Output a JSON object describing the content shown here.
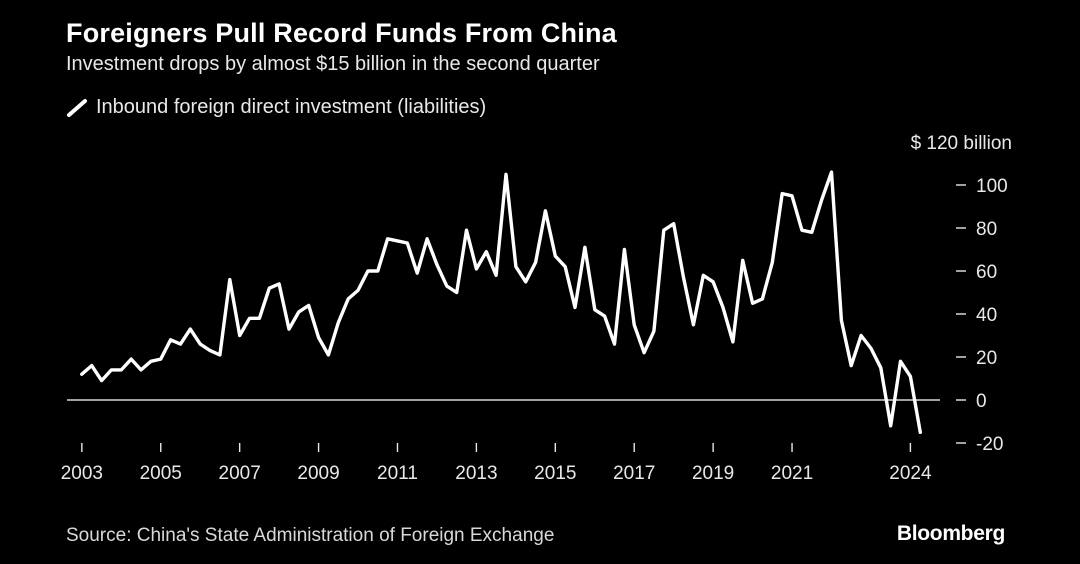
{
  "header": {
    "title": "Foreigners Pull Record Funds From China",
    "subtitle": "Investment drops by almost $15 billion in the second quarter"
  },
  "footer": {
    "source": "Source: China's State Administration of Foreign Exchange",
    "brand": "Bloomberg"
  },
  "colors": {
    "background": "#000000",
    "line": "#ffffff",
    "zero_line": "#ffffff",
    "text": "#e8e8e8"
  },
  "chart_data": {
    "type": "line",
    "title": "Foreigners Pull Record Funds From China",
    "subtitle": "Investment drops by almost $15 billion in the second quarter",
    "y_unit_label": "$ 120 billion",
    "ylim": [
      -20,
      120
    ],
    "yticks": [
      -20,
      0,
      20,
      40,
      60,
      80,
      100
    ],
    "ytick_labels": [
      "-20",
      "0",
      "20",
      "40",
      "60",
      "80",
      "100"
    ],
    "xticks": [
      2003,
      2005,
      2007,
      2009,
      2011,
      2013,
      2015,
      2017,
      2019,
      2021,
      2024
    ],
    "xtick_labels": [
      "2003",
      "2005",
      "2007",
      "2009",
      "2011",
      "2013",
      "2015",
      "2017",
      "2019",
      "2021",
      "2024"
    ],
    "xlim": [
      2002.7,
      2024.75
    ],
    "grid": false,
    "legend_position": "top-left",
    "series": [
      {
        "name": "Inbound foreign direct investment (liabilities)",
        "x_start": 2003.0,
        "x_step": 0.25,
        "values": [
          12,
          16,
          9,
          14,
          14,
          19,
          14,
          18,
          19,
          28,
          26,
          33,
          26,
          23,
          21,
          56,
          30,
          38,
          38,
          52,
          54,
          33,
          41,
          44,
          29,
          21,
          36,
          47,
          51,
          60,
          60,
          75,
          74,
          73,
          59,
          75,
          63,
          53,
          50,
          79,
          61,
          69,
          58,
          105,
          62,
          55,
          64,
          88,
          67,
          62,
          43,
          71,
          42,
          39,
          26,
          70,
          35,
          22,
          32,
          79,
          82,
          57,
          35,
          58,
          55,
          43,
          27,
          65,
          45,
          47,
          64,
          96,
          95,
          79,
          78,
          93,
          106,
          37,
          16,
          30,
          24,
          15,
          -12,
          18,
          11,
          -15
        ]
      }
    ]
  }
}
